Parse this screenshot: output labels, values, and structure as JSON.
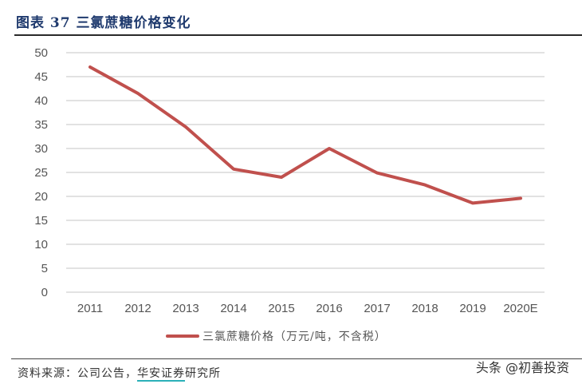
{
  "header": {
    "title": "图表 37  三氯蔗糖价格变化"
  },
  "chart_data": {
    "type": "line",
    "title": "三氯蔗糖价格变化",
    "categories": [
      "2011",
      "2012",
      "2013",
      "2014",
      "2015",
      "2016",
      "2017",
      "2018",
      "2019",
      "2020E"
    ],
    "series": [
      {
        "name": "三氯蔗糖价格（万元/吨，不含税）",
        "color": "#c0504d",
        "values": [
          47,
          41.5,
          34.5,
          25.7,
          24.0,
          30.0,
          24.9,
          22.4,
          18.6,
          19.6
        ]
      }
    ],
    "xlabel": "",
    "ylabel": "",
    "ylim": [
      0,
      50
    ],
    "yticks": [
      "0",
      "5",
      "10",
      "15",
      "20",
      "25",
      "30",
      "35",
      "40",
      "45",
      "50"
    ],
    "grid": true,
    "legend_position": "bottom"
  },
  "legend": {
    "label": "三氯蔗糖价格（万元/吨，不含税）"
  },
  "footer": {
    "source_prefix": "资料来源：公司公告，",
    "source_highlight": "华安证券",
    "source_suffix": "研究所",
    "watermark": "头条 @初善投资"
  }
}
